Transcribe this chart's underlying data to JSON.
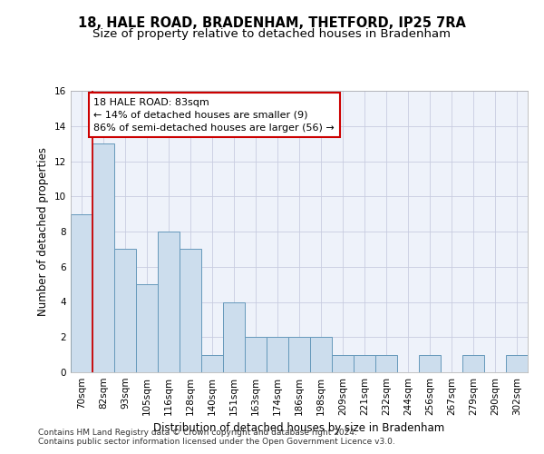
{
  "title": "18, HALE ROAD, BRADENHAM, THETFORD, IP25 7RA",
  "subtitle": "Size of property relative to detached houses in Bradenham",
  "xlabel": "Distribution of detached houses by size in Bradenham",
  "ylabel": "Number of detached properties",
  "categories": [
    "70sqm",
    "82sqm",
    "93sqm",
    "105sqm",
    "116sqm",
    "128sqm",
    "140sqm",
    "151sqm",
    "163sqm",
    "174sqm",
    "186sqm",
    "198sqm",
    "209sqm",
    "221sqm",
    "232sqm",
    "244sqm",
    "256sqm",
    "267sqm",
    "279sqm",
    "290sqm",
    "302sqm"
  ],
  "values": [
    9,
    13,
    7,
    5,
    8,
    7,
    1,
    4,
    2,
    2,
    2,
    2,
    1,
    1,
    1,
    0,
    1,
    0,
    1,
    0,
    1
  ],
  "bar_color": "#ccdded",
  "bar_edgecolor": "#6699bb",
  "vline_color": "#cc0000",
  "ylim": [
    0,
    16
  ],
  "yticks": [
    0,
    2,
    4,
    6,
    8,
    10,
    12,
    14,
    16
  ],
  "annotation_line1": "18 HALE ROAD: 83sqm",
  "annotation_line2": "← 14% of detached houses are smaller (9)",
  "annotation_line3": "86% of semi-detached houses are larger (56) →",
  "footnote1": "Contains HM Land Registry data © Crown copyright and database right 2024.",
  "footnote2": "Contains public sector information licensed under the Open Government Licence v3.0.",
  "background_color": "#eef2fa",
  "grid_color": "#c8cce0",
  "title_fontsize": 10.5,
  "subtitle_fontsize": 9.5,
  "xlabel_fontsize": 8.5,
  "ylabel_fontsize": 8.5,
  "tick_fontsize": 7.5,
  "annotation_fontsize": 8,
  "footnote_fontsize": 6.5
}
